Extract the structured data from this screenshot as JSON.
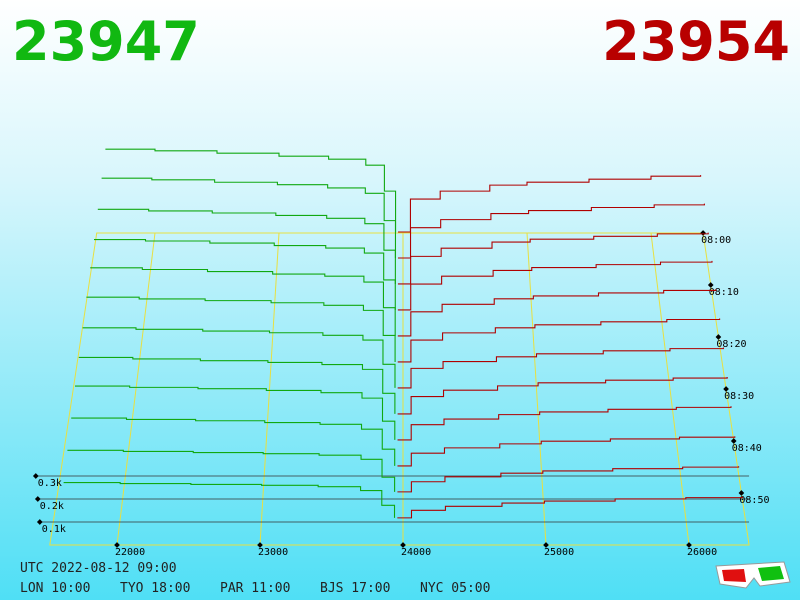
{
  "chart_data": {
    "type": "depth3d",
    "bid_price": "23947",
    "ask_price": "23954",
    "bid_color": "#11b811",
    "ask_color": "#b80000",
    "timestamp": "UTC 2022-08-12 09:00",
    "clocks": [
      "LON 10:00",
      "TYO 18:00",
      "PAR 11:00",
      "BJS 17:00",
      "NYC 05:00"
    ],
    "xlim": [
      21530,
      26420
    ],
    "xticks": [
      22000,
      23000,
      24000,
      25000,
      26000
    ],
    "zlim": [
      "08:00",
      "09:00"
    ],
    "zticks": [
      "08:00",
      "08:10",
      "08:20",
      "08:30",
      "08:40",
      "08:50"
    ],
    "yticks": [
      {
        "value": 100,
        "label": "0.1k"
      },
      {
        "value": 200,
        "label": "0.2k"
      },
      {
        "value": 300,
        "label": "0.3k"
      }
    ],
    "bids": {
      "color": "#11a811",
      "prices": [
        21600,
        22000,
        22500,
        23000,
        23400,
        23700,
        23850,
        23940
      ],
      "snapshots": [
        {
          "time": "08:00",
          "values": [
            420,
            412,
            400,
            385,
            370,
            340,
            210,
            5
          ]
        },
        {
          "time": "08:05",
          "values": [
            400,
            392,
            380,
            368,
            352,
            325,
            190,
            5
          ]
        },
        {
          "time": "08:10",
          "values": [
            370,
            362,
            352,
            340,
            326,
            300,
            170,
            5
          ]
        },
        {
          "time": "08:15",
          "values": [
            345,
            338,
            328,
            316,
            304,
            280,
            150,
            5
          ]
        },
        {
          "time": "08:20",
          "values": [
            330,
            322,
            312,
            300,
            290,
            262,
            140,
            5
          ]
        },
        {
          "time": "08:25",
          "values": [
            310,
            302,
            294,
            284,
            272,
            248,
            130,
            5
          ]
        },
        {
          "time": "08:30",
          "values": [
            285,
            278,
            270,
            262,
            250,
            228,
            115,
            5
          ]
        },
        {
          "time": "08:35",
          "values": [
            265,
            258,
            250,
            242,
            232,
            210,
            100,
            5
          ]
        },
        {
          "time": "08:40",
          "values": [
            250,
            244,
            238,
            230,
            220,
            195,
            90,
            5
          ]
        },
        {
          "time": "08:45",
          "values": [
            220,
            214,
            208,
            200,
            192,
            170,
            80,
            5
          ]
        },
        {
          "time": "08:50",
          "values": [
            190,
            185,
            180,
            175,
            168,
            150,
            70,
            5
          ]
        },
        {
          "time": "08:55",
          "values": [
            160,
            156,
            152,
            148,
            142,
            125,
            60,
            5
          ]
        }
      ]
    },
    "asks": {
      "color": "#b00000",
      "prices": [
        23960,
        24060,
        24300,
        24700,
        25000,
        25500,
        26000,
        26400
      ],
      "snapshots": [
        {
          "time": "08:00",
          "values": [
            5,
            170,
            210,
            240,
            255,
            270,
            285,
            290
          ]
        },
        {
          "time": "08:05",
          "values": [
            5,
            155,
            195,
            225,
            240,
            255,
            268,
            274
          ]
        },
        {
          "time": "08:10",
          "values": [
            5,
            140,
            180,
            210,
            224,
            238,
            250,
            256
          ]
        },
        {
          "time": "08:15",
          "values": [
            5,
            130,
            168,
            196,
            210,
            224,
            236,
            242
          ]
        },
        {
          "time": "08:20",
          "values": [
            5,
            120,
            156,
            182,
            196,
            210,
            222,
            228
          ]
        },
        {
          "time": "08:25",
          "values": [
            5,
            108,
            142,
            166,
            180,
            194,
            205,
            210
          ]
        },
        {
          "time": "08:30",
          "values": [
            5,
            96,
            128,
            150,
            164,
            178,
            188,
            193
          ]
        },
        {
          "time": "08:35",
          "values": [
            5,
            85,
            114,
            134,
            148,
            160,
            170,
            175
          ]
        },
        {
          "time": "08:40",
          "values": [
            5,
            74,
            100,
            120,
            132,
            144,
            153,
            158
          ]
        },
        {
          "time": "08:45",
          "values": [
            5,
            62,
            86,
            104,
            116,
            126,
            134,
            138
          ]
        },
        {
          "time": "08:50",
          "values": [
            5,
            50,
            72,
            88,
            98,
            108,
            115,
            119
          ]
        },
        {
          "time": "08:55",
          "values": [
            5,
            38,
            56,
            70,
            79,
            88,
            94,
            97
          ]
        }
      ]
    }
  }
}
